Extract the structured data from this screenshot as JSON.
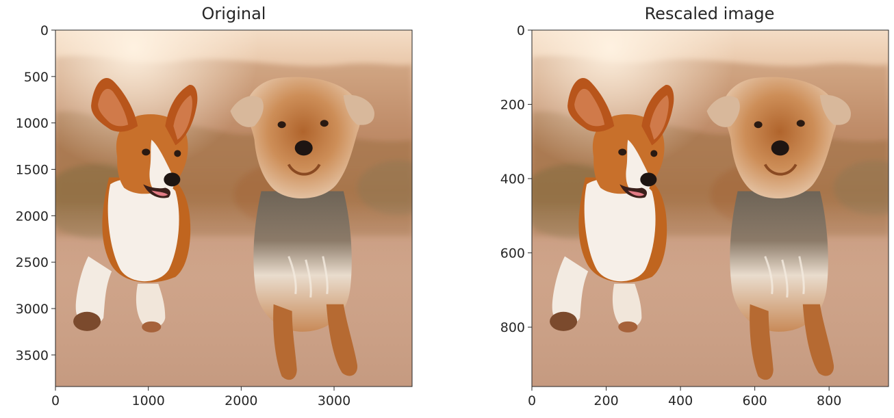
{
  "chart_data": [
    {
      "type": "image",
      "title": "Original",
      "content": "photo of two small dogs running toward the camera on a dirt path at sunset: a corgi on the left and a fluffy yorkshire-terrier-mix on the right",
      "xlim": [
        0,
        3840
      ],
      "ylim": [
        3840,
        0
      ],
      "xticks": [
        0,
        1000,
        2000,
        3000
      ],
      "yticks": [
        0,
        500,
        1000,
        1500,
        2000,
        2500,
        3000,
        3500
      ],
      "xtick_labels": [
        "0",
        "1000",
        "2000",
        "3000"
      ],
      "ytick_labels": [
        "0",
        "500",
        "1000",
        "1500",
        "2000",
        "2500",
        "3000",
        "3500"
      ]
    },
    {
      "type": "image",
      "title": "Rescaled image",
      "content": "same photo rescaled to one quarter size",
      "xlim": [
        0,
        960
      ],
      "ylim": [
        960,
        0
      ],
      "xticks": [
        0,
        200,
        400,
        600,
        800
      ],
      "yticks": [
        0,
        200,
        400,
        600,
        800
      ],
      "xtick_labels": [
        "0",
        "200",
        "400",
        "600",
        "800"
      ],
      "ytick_labels": [
        "0",
        "200",
        "400",
        "600",
        "800"
      ]
    }
  ],
  "colors": {
    "sky": "#f4ddc6",
    "background_warm": "#c98d5e",
    "ground": "#caa089",
    "corgi_fur": "#c0651f",
    "corgi_white": "#f6efe8",
    "terrier_fur": "#c88850",
    "terrier_grey": "#756a5c"
  }
}
